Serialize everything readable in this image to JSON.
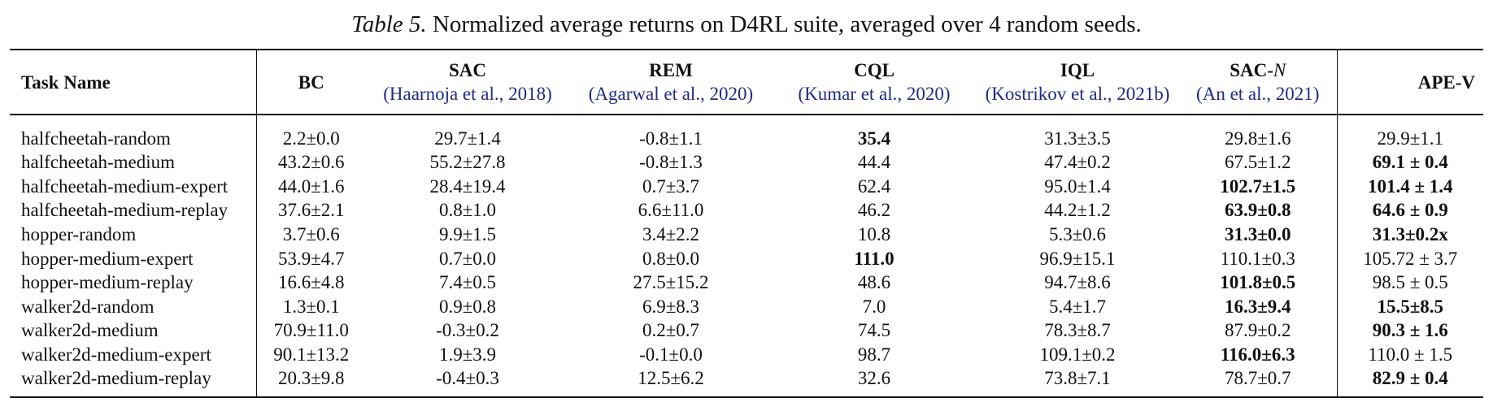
{
  "caption": {
    "label": "Table 5.",
    "text": " Normalized average returns on D4RL suite, averaged over 4 random seeds."
  },
  "table": {
    "header": {
      "task": "Task Name",
      "methods": [
        {
          "name": "BC",
          "cite": ""
        },
        {
          "name": "SAC",
          "cite": "(Haarnoja et al., 2018)"
        },
        {
          "name": "REM",
          "cite": "(Agarwal et al., 2020)"
        },
        {
          "name": "CQL",
          "cite": "(Kumar et al., 2020)"
        },
        {
          "name": "IQL",
          "cite": "(Kostrikov et al., 2021b)"
        },
        {
          "name": "SAC-N",
          "cite": "(An et al., 2021)"
        },
        {
          "name": "APE-V",
          "cite": ""
        }
      ]
    },
    "rows": [
      {
        "task": "halfcheetah-random",
        "values": [
          "2.2±0.0",
          "29.7±1.4",
          "-0.8±1.1",
          "35.4",
          "31.3±3.5",
          "29.8±1.6",
          "29.9±1.1"
        ],
        "bold": [
          false,
          false,
          false,
          true,
          false,
          false,
          false
        ]
      },
      {
        "task": "halfcheetah-medium",
        "values": [
          "43.2±0.6",
          "55.2±27.8",
          "-0.8±1.3",
          "44.4",
          "47.4±0.2",
          "67.5±1.2",
          "69.1 ± 0.4"
        ],
        "bold": [
          false,
          false,
          false,
          false,
          false,
          false,
          true
        ]
      },
      {
        "task": "halfcheetah-medium-expert",
        "values": [
          "44.0±1.6",
          "28.4±19.4",
          "0.7±3.7",
          "62.4",
          "95.0±1.4",
          "102.7±1.5",
          "101.4 ± 1.4"
        ],
        "bold": [
          false,
          false,
          false,
          false,
          false,
          true,
          true
        ]
      },
      {
        "task": "halfcheetah-medium-replay",
        "values": [
          "37.6±2.1",
          "0.8±1.0",
          "6.6±11.0",
          "46.2",
          "44.2±1.2",
          "63.9±0.8",
          "64.6 ± 0.9"
        ],
        "bold": [
          false,
          false,
          false,
          false,
          false,
          true,
          true
        ]
      },
      {
        "task": "hopper-random",
        "values": [
          "3.7±0.6",
          "9.9±1.5",
          "3.4±2.2",
          "10.8",
          "5.3±0.6",
          "31.3±0.0",
          "31.3±0.2x"
        ],
        "bold": [
          false,
          false,
          false,
          false,
          false,
          true,
          true
        ]
      },
      {
        "task": "hopper-medium-expert",
        "values": [
          "53.9±4.7",
          "0.7±0.0",
          "0.8±0.0",
          "111.0",
          "96.9±15.1",
          "110.1±0.3",
          "105.72 ± 3.7"
        ],
        "bold": [
          false,
          false,
          false,
          true,
          false,
          false,
          false
        ]
      },
      {
        "task": "hopper-medium-replay",
        "values": [
          "16.6±4.8",
          "7.4±0.5",
          "27.5±15.2",
          "48.6",
          "94.7±8.6",
          "101.8±0.5",
          "98.5 ± 0.5"
        ],
        "bold": [
          false,
          false,
          false,
          false,
          false,
          true,
          false
        ]
      },
      {
        "task": "walker2d-random",
        "values": [
          "1.3±0.1",
          "0.9±0.8",
          "6.9±8.3",
          "7.0",
          "5.4±1.7",
          "16.3±9.4",
          "15.5±8.5"
        ],
        "bold": [
          false,
          false,
          false,
          false,
          false,
          true,
          true
        ]
      },
      {
        "task": "walker2d-medium",
        "values": [
          "70.9±11.0",
          "-0.3±0.2",
          "0.2±0.7",
          "74.5",
          "78.3±8.7",
          "87.9±0.2",
          "90.3 ± 1.6"
        ],
        "bold": [
          false,
          false,
          false,
          false,
          false,
          false,
          true
        ]
      },
      {
        "task": "walker2d-medium-expert",
        "values": [
          "90.1±13.2",
          "1.9±3.9",
          "-0.1±0.0",
          "98.7",
          "109.1±0.2",
          "116.0±6.3",
          "110.0 ± 1.5"
        ],
        "bold": [
          false,
          false,
          false,
          false,
          false,
          true,
          false
        ]
      },
      {
        "task": "walker2d-medium-replay",
        "values": [
          "20.3±9.8",
          "-0.4±0.3",
          "12.5±6.2",
          "32.6",
          "73.8±7.1",
          "78.7±0.7",
          "82.9 ± 0.4"
        ],
        "bold": [
          false,
          false,
          false,
          false,
          false,
          false,
          true
        ]
      }
    ]
  }
}
